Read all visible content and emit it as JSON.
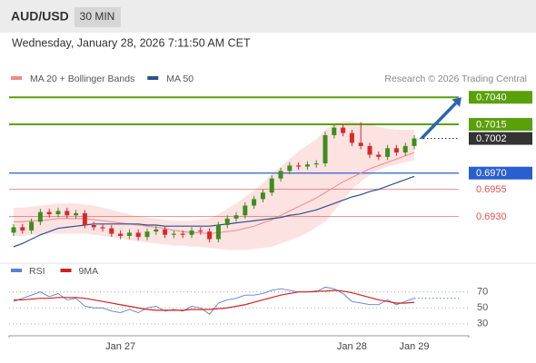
{
  "header": {
    "symbol": "AUD/USD",
    "interval": "30 MIN",
    "timestamp": "Wednesday, January 28, 2026 7:11:50 AM CET"
  },
  "chart_data": [
    {
      "type": "candlestick",
      "legend": [
        {
          "name": "MA 20 + Bollinger Bands",
          "color": "#f08a8a"
        },
        {
          "name": "MA 50",
          "color": "#2c4f8f"
        }
      ],
      "credit": "Research © 2026 Trading Central",
      "categories": [
        null,
        null,
        null,
        null,
        null,
        null,
        null,
        null,
        null,
        null,
        null,
        null,
        "Jan 27",
        null,
        null,
        null,
        null,
        null,
        null,
        null,
        null,
        null,
        null,
        null,
        null,
        null,
        null,
        null,
        null,
        null,
        null,
        null,
        null,
        null,
        null,
        null,
        null,
        null,
        "Jan 28",
        null,
        null,
        null,
        null,
        null,
        null,
        "Jan 29"
      ],
      "open": [
        0.6915,
        0.692,
        0.6917,
        0.6925,
        0.6934,
        0.6932,
        0.6935,
        0.6931,
        0.6933,
        0.6922,
        0.692,
        0.6919,
        0.6914,
        0.6912,
        0.6915,
        0.6911,
        0.6916,
        0.6918,
        0.6913,
        0.6914,
        0.6913,
        0.6917,
        0.6916,
        0.6909,
        0.6922,
        0.6928,
        0.6931,
        0.694,
        0.6946,
        0.6952,
        0.6965,
        0.6972,
        0.6977,
        0.6976,
        0.6978,
        0.6979,
        0.7005,
        0.7012,
        0.7007,
        0.6998,
        0.6995,
        0.6987,
        0.6985,
        0.6993,
        0.6989,
        0.6995
      ],
      "high": [
        0.6923,
        0.6923,
        0.6928,
        0.6937,
        0.6937,
        0.6938,
        0.6938,
        0.6936,
        0.6936,
        0.6925,
        0.6923,
        0.6922,
        0.6917,
        0.6918,
        0.6918,
        0.6919,
        0.6921,
        0.6921,
        0.6917,
        0.6917,
        0.692,
        0.692,
        0.6919,
        0.6925,
        0.6931,
        0.6934,
        0.6943,
        0.6949,
        0.6955,
        0.6968,
        0.6975,
        0.698,
        0.698,
        0.6981,
        0.6982,
        0.7008,
        0.7015,
        0.7015,
        0.701,
        0.7017,
        0.6998,
        0.699,
        0.6996,
        0.6996,
        0.6998,
        0.7005
      ],
      "low": [
        0.6912,
        0.6914,
        0.6914,
        0.6922,
        0.6929,
        0.6929,
        0.6928,
        0.6928,
        0.6919,
        0.6917,
        0.6916,
        0.6911,
        0.6909,
        0.6909,
        0.6908,
        0.6908,
        0.6913,
        0.691,
        0.691,
        0.691,
        0.691,
        0.6913,
        0.6906,
        0.6906,
        0.6919,
        0.6925,
        0.6928,
        0.6937,
        0.6943,
        0.6949,
        0.6962,
        0.6969,
        0.6973,
        0.6973,
        0.6975,
        0.6976,
        0.7002,
        0.7004,
        0.6995,
        0.6992,
        0.6984,
        0.6982,
        0.6982,
        0.6986,
        0.6986,
        0.6992
      ],
      "close": [
        0.692,
        0.6917,
        0.6925,
        0.6934,
        0.6932,
        0.6935,
        0.6931,
        0.6933,
        0.6922,
        0.692,
        0.6919,
        0.6914,
        0.6912,
        0.6915,
        0.6911,
        0.6916,
        0.6918,
        0.6913,
        0.6914,
        0.6913,
        0.6917,
        0.6916,
        0.6909,
        0.6922,
        0.6928,
        0.6931,
        0.694,
        0.6946,
        0.6952,
        0.6965,
        0.6972,
        0.6977,
        0.6976,
        0.6978,
        0.6979,
        0.7005,
        0.7012,
        0.7007,
        0.6998,
        0.6995,
        0.6987,
        0.6985,
        0.6993,
        0.6989,
        0.6995,
        0.7002
      ],
      "up_color": "#3e8e1e",
      "down_color": "#d42a2a",
      "ma20": [
        0.6925,
        0.6925,
        0.6926,
        0.6926,
        0.6927,
        0.6928,
        0.6928,
        0.6928,
        0.6928,
        0.6927,
        0.6926,
        0.6925,
        0.6924,
        0.6923,
        0.6922,
        0.6921,
        0.692,
        0.6919,
        0.6917,
        0.6916,
        0.6915,
        0.6915,
        0.6914,
        0.6915,
        0.6916,
        0.6917,
        0.6919,
        0.6921,
        0.6924,
        0.6927,
        0.6931,
        0.6935,
        0.6939,
        0.6943,
        0.6947,
        0.6952,
        0.6957,
        0.6962,
        0.6966,
        0.697,
        0.6974,
        0.6977,
        0.698,
        0.6983,
        0.6986,
        0.6989
      ],
      "bb_upper": [
        0.6938,
        0.6938,
        0.6939,
        0.694,
        0.6941,
        0.6942,
        0.6942,
        0.6942,
        0.6941,
        0.694,
        0.6938,
        0.6936,
        0.6934,
        0.6932,
        0.693,
        0.6929,
        0.6928,
        0.6927,
        0.6926,
        0.6926,
        0.6926,
        0.6927,
        0.6928,
        0.6932,
        0.6937,
        0.6942,
        0.6948,
        0.6954,
        0.6961,
        0.6969,
        0.6976,
        0.6983,
        0.699,
        0.6996,
        0.7001,
        0.701,
        0.7016,
        0.7018,
        0.7018,
        0.7017,
        0.7015,
        0.7013,
        0.7011,
        0.701,
        0.701,
        0.701
      ],
      "bb_lower": [
        0.6912,
        0.6912,
        0.6913,
        0.6913,
        0.6914,
        0.6914,
        0.6914,
        0.6914,
        0.6914,
        0.6913,
        0.6912,
        0.6911,
        0.691,
        0.6908,
        0.6907,
        0.6906,
        0.6905,
        0.6904,
        0.6903,
        0.6903,
        0.6902,
        0.6902,
        0.6901,
        0.69,
        0.6899,
        0.6899,
        0.6899,
        0.69,
        0.6901,
        0.6902,
        0.6905,
        0.6908,
        0.6911,
        0.6915,
        0.692,
        0.6925,
        0.6935,
        0.6945,
        0.6955,
        0.6962,
        0.6968,
        0.6973,
        0.6976,
        0.6978,
        0.698,
        0.6982
      ],
      "band_color": "#fde2e2",
      "ma50": [
        0.6902,
        0.6905,
        0.6909,
        0.6913,
        0.6916,
        0.6919,
        0.692,
        0.6921,
        0.6922,
        0.6923,
        0.6923,
        0.6923,
        0.6923,
        0.6923,
        0.6923,
        0.6922,
        0.6922,
        0.6921,
        0.6921,
        0.6921,
        0.6921,
        0.6921,
        0.6921,
        0.6922,
        0.6923,
        0.6924,
        0.6925,
        0.6926,
        0.6927,
        0.6928,
        0.6929,
        0.6931,
        0.6932,
        0.6934,
        0.6936,
        0.6939,
        0.6942,
        0.6945,
        0.6948,
        0.695,
        0.6953,
        0.6955,
        0.6958,
        0.6961,
        0.6964,
        0.6967
      ],
      "ylim": [
        0.6891,
        0.7067
      ],
      "levels": [
        {
          "value": 0.704,
          "label": "0.7040",
          "color": "#5aa00a",
          "kind": "box",
          "line": "thick"
        },
        {
          "value": 0.7015,
          "label": "0.7015",
          "color": "#5aa00a",
          "kind": "box",
          "line": "thick"
        },
        {
          "value": 0.7002,
          "label": "0.7002",
          "color": "#333333",
          "kind": "box",
          "line": "dotted"
        },
        {
          "value": 0.697,
          "label": "0.6970",
          "color": "#2a5fd0",
          "kind": "box",
          "line": "solid"
        },
        {
          "value": 0.6955,
          "label": "0.6955",
          "color": "#e05050",
          "kind": "text",
          "line": "thin"
        },
        {
          "value": 0.693,
          "label": "0.6930",
          "color": "#e05050",
          "kind": "text",
          "line": "thin"
        }
      ]
    },
    {
      "type": "line",
      "series": [
        {
          "name": "RSI",
          "color": "#5b7fd6",
          "values": [
            58,
            62,
            66,
            70,
            64,
            68,
            60,
            62,
            52,
            50,
            50,
            46,
            44,
            48,
            44,
            50,
            52,
            46,
            48,
            46,
            52,
            50,
            42,
            56,
            60,
            62,
            66,
            66,
            68,
            72,
            74,
            72,
            70,
            70,
            70,
            76,
            74,
            68,
            58,
            56,
            54,
            54,
            60,
            54,
            58,
            62
          ]
        },
        {
          "name": "9MA",
          "color": "#d42020",
          "values": [
            60,
            60,
            61,
            62,
            62,
            63,
            63,
            63,
            62,
            60,
            58,
            56,
            54,
            52,
            50,
            48,
            47,
            47,
            47,
            47,
            48,
            48,
            48,
            49,
            50,
            52,
            54,
            57,
            60,
            63,
            66,
            68,
            70,
            70,
            71,
            71,
            72,
            71,
            69,
            66,
            63,
            60,
            58,
            56,
            56,
            57
          ]
        }
      ],
      "ylim": [
        15,
        81
      ],
      "yticks": [
        70,
        50,
        30
      ]
    }
  ]
}
